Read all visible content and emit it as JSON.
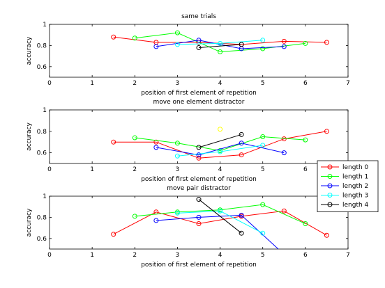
{
  "chart_data": [
    {
      "type": "line",
      "title": "same trials",
      "xlabel": "position of first element of repetition",
      "ylabel": "accuracy",
      "xlim": [
        0,
        7
      ],
      "ylim": [
        0.5,
        1.0
      ],
      "xticks": [
        0,
        1,
        2,
        3,
        4,
        5,
        6,
        7
      ],
      "yticks": [
        0.6,
        0.8,
        1
      ],
      "series": [
        {
          "name": "length 0",
          "color": "#ff0000",
          "x": [
            1.5,
            2.5,
            3.5,
            4.5,
            5.5,
            6.5
          ],
          "y": [
            0.88,
            0.83,
            0.83,
            0.81,
            0.84,
            0.83
          ]
        },
        {
          "name": "length 1",
          "color": "#00ff00",
          "x": [
            2,
            3,
            4,
            5,
            6
          ],
          "y": [
            0.87,
            0.92,
            0.74,
            0.77,
            0.82
          ]
        },
        {
          "name": "length 2",
          "color": "#0000ff",
          "x": [
            2.5,
            3.5,
            4.5,
            5.5
          ],
          "y": [
            0.79,
            0.85,
            0.77,
            0.79
          ]
        },
        {
          "name": "length 3",
          "color": "#00ffff",
          "x": [
            3,
            4,
            5
          ],
          "y": [
            0.81,
            0.82,
            0.85
          ]
        },
        {
          "name": "length 4",
          "color": "#000000",
          "x": [
            3.5,
            4.5
          ],
          "y": [
            0.78,
            0.81
          ]
        }
      ]
    },
    {
      "type": "line",
      "title": "move one element distractor",
      "xlabel": "position of first element of repetition",
      "ylabel": "accuracy",
      "xlim": [
        0,
        7
      ],
      "ylim": [
        0.5,
        1.0
      ],
      "xticks": [
        0,
        1,
        2,
        3,
        4,
        5,
        6,
        7
      ],
      "yticks": [
        0.6,
        0.8,
        1
      ],
      "series": [
        {
          "name": "length 0",
          "color": "#ff0000",
          "x": [
            1.5,
            2.5,
            3.5,
            4.5,
            5.5,
            6.5
          ],
          "y": [
            0.7,
            0.7,
            0.55,
            0.58,
            0.73,
            0.8
          ]
        },
        {
          "name": "length 1",
          "color": "#00ff00",
          "x": [
            2,
            3,
            4,
            5,
            6
          ],
          "y": [
            0.74,
            0.69,
            0.62,
            0.75,
            0.72
          ]
        },
        {
          "name": "length 2",
          "color": "#0000ff",
          "x": [
            2.5,
            3.5,
            4.5,
            5.5
          ],
          "y": [
            0.65,
            0.58,
            0.69,
            0.6
          ]
        },
        {
          "name": "length 3",
          "color": "#00ffff",
          "x": [
            3,
            4,
            5
          ],
          "y": [
            0.57,
            0.61,
            0.67
          ]
        },
        {
          "name": "length 4",
          "color": "#000000",
          "x": [
            3.5,
            4.5
          ],
          "y": [
            0.65,
            0.77
          ]
        },
        {
          "name": "",
          "color": "#ffff00",
          "x": [
            4
          ],
          "y": [
            0.82
          ]
        }
      ]
    },
    {
      "type": "line",
      "title": "move pair distractor",
      "xlabel": "position of first element of repetition",
      "ylabel": "accuracy",
      "xlim": [
        0,
        7
      ],
      "ylim": [
        0.5,
        1.0
      ],
      "xticks": [
        0,
        1,
        2,
        3,
        4,
        5,
        6,
        7
      ],
      "yticks": [
        0.6,
        0.8,
        1
      ],
      "series": [
        {
          "name": "length 0",
          "color": "#ff0000",
          "x": [
            1.5,
            2.5,
            3.5,
            4.5,
            5.5,
            6.5
          ],
          "y": [
            0.64,
            0.85,
            0.74,
            0.81,
            0.86,
            0.63
          ]
        },
        {
          "name": "length 1",
          "color": "#00ff00",
          "x": [
            2,
            3,
            4,
            5,
            6
          ],
          "y": [
            0.81,
            0.85,
            0.87,
            0.92,
            0.74
          ]
        },
        {
          "name": "length 2",
          "color": "#0000ff",
          "x": [
            2.5,
            3.5,
            4.5,
            5.5
          ],
          "y": [
            0.77,
            0.8,
            0.82,
            0.45
          ]
        },
        {
          "name": "length 3",
          "color": "#00ffff",
          "x": [
            3,
            4,
            5
          ],
          "y": [
            0.84,
            0.86,
            0.65
          ]
        },
        {
          "name": "length 4",
          "color": "#000000",
          "x": [
            3.5,
            4.5
          ],
          "y": [
            0.97,
            0.65
          ]
        }
      ]
    }
  ],
  "legend": {
    "entries": [
      {
        "label": "length 0",
        "color": "#ff0000"
      },
      {
        "label": "length 1",
        "color": "#00ff00"
      },
      {
        "label": "length 2",
        "color": "#0000ff"
      },
      {
        "label": "length 3",
        "color": "#00ffff"
      },
      {
        "label": "length 4",
        "color": "#000000"
      }
    ]
  }
}
